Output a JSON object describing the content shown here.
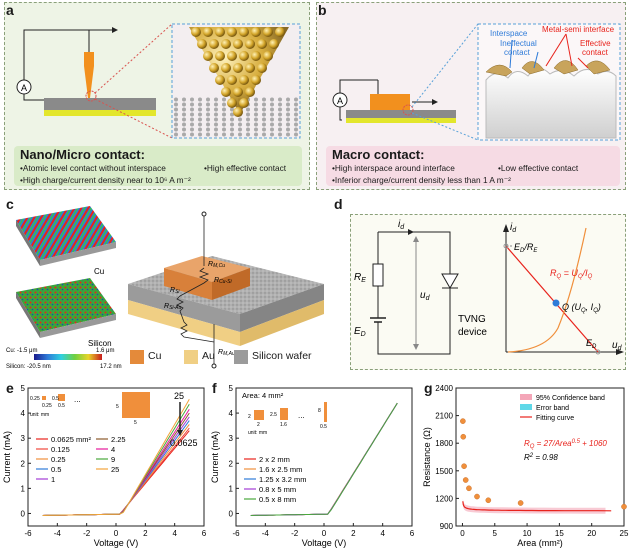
{
  "panel_labels": {
    "a": "a",
    "b": "b",
    "c": "c",
    "d": "d",
    "e": "e",
    "f": "f",
    "g": "g"
  },
  "panel_a": {
    "ammeter": "A",
    "heading": "Nano/Micro contact:",
    "bullets": [
      "•Atomic level contact without interspace",
      "•High effective contact",
      "•High charge/current density near to 10⁶ A m⁻²"
    ]
  },
  "panel_b": {
    "ammeter": "A",
    "labels": {
      "interspace": "Interspace",
      "metal_semi": "Metal-semi interface",
      "ineffectual": "Ineffectual",
      "ineffectual2": "contact",
      "effective": "Effective",
      "effective2": "contact"
    },
    "heading": "Macro contact:",
    "bullets": [
      "•High interspace around interface",
      "•Low effective contact",
      "•Inferior charge/current density less than 1 A m⁻²"
    ]
  },
  "panel_c": {
    "map_labels": {
      "cu": "Cu",
      "silicon": "Silicon"
    },
    "scale": {
      "cu_min": "Cu: -1.5 μm",
      "cu_max": "1.6 μm",
      "si_min": "Silicon: -20.5 nm",
      "si_max": "17.2 nm"
    },
    "resistors": {
      "r_m_cu": "R",
      "r_m_cu_sub": "M,Cu",
      "r_cu_si": "R",
      "r_cu_si_sub": "Cu-Si",
      "r_si": "R",
      "r_si_sub": "Si",
      "r_si_au": "R",
      "r_si_au_sub": "Si-Au",
      "r_au": "R",
      "r_au_sub": "M,Au"
    },
    "legend": [
      {
        "name": "Cu",
        "color": "#e48a3a"
      },
      {
        "name": "Au",
        "color": "#f0cf84"
      },
      {
        "name": "Silicon wafer",
        "color": "#9b9b9b"
      }
    ]
  },
  "panel_d": {
    "circuit": {
      "id": "i",
      "id_sub": "d",
      "re": "R",
      "re_sub": "E",
      "ud": "u",
      "ud_sub": "d",
      "ed": "E",
      "ed_sub": "D",
      "device1": "TVNG",
      "device2": "device"
    },
    "graph": {
      "yaxis": "i",
      "yaxis_sub": "d",
      "xaxis": "u",
      "xaxis_sub": "d",
      "ed_re": "E",
      "ed_re_mid": "D",
      "ed_re_rest": "/R",
      "ed_re_sub": "E",
      "ed": "E",
      "ed_sub": "D",
      "q": "Q (U",
      "q_sub1": "Q",
      "q_mid": ", I",
      "q_sub2": "Q",
      "q_end": ")",
      "rq": "R",
      "rq_sub": "Q",
      "rq_eq": " = U",
      "rq_sub2": "Q",
      "rq_slash": "/I",
      "rq_sub3": "Q"
    }
  },
  "chart_data": [
    {
      "type": "line",
      "panel": "e",
      "xlabel": "Voltage (V)",
      "ylabel": "Current (mA)",
      "xlim": [
        -6,
        6
      ],
      "ylim": [
        -0.5,
        5
      ],
      "xticks": [
        -6,
        -4,
        -2,
        0,
        2,
        4,
        6
      ],
      "yticks": [
        0,
        1,
        2,
        3,
        4,
        5
      ],
      "annotations": {
        "top": "25",
        "bottom": "0.0625",
        "inset_unit": "unit: mm",
        "inset_a": "0.25",
        "inset_b": "0.25",
        "inset_c": "0.5",
        "inset_d": "0.5",
        "inset_e": "5",
        "inset_f": "5"
      },
      "series": [
        {
          "name": "0.0625 mm²",
          "color": "#e8231c",
          "end": 3.3
        },
        {
          "name": "0.125",
          "color": "#f0473c",
          "end": 3.4
        },
        {
          "name": "0.25",
          "color": "#f08f3b",
          "end": 3.55
        },
        {
          "name": "0.5",
          "color": "#2f7bd8",
          "end": 3.7
        },
        {
          "name": "1",
          "color": "#a33bd6",
          "end": 3.85
        },
        {
          "name": "2.25",
          "color": "#8b5a2b",
          "end": 4.0
        },
        {
          "name": "4",
          "color": "#e6199b",
          "end": 4.15
        },
        {
          "name": "9",
          "color": "#4aa83c",
          "end": 4.35
        },
        {
          "name": "25",
          "color": "#f2a33a",
          "end": 4.55
        }
      ]
    },
    {
      "type": "line",
      "panel": "f",
      "title": "Area: 4 mm²",
      "xlabel": "Voltage (V)",
      "ylabel": "Current (mA)",
      "xlim": [
        -6,
        6
      ],
      "ylim": [
        -0.5,
        5
      ],
      "xticks": [
        -6,
        -4,
        -2,
        0,
        2,
        4,
        6
      ],
      "yticks": [
        0,
        1,
        2,
        3,
        4,
        5
      ],
      "annotations": {
        "inset_unit": "unit: mm",
        "i1a": "2",
        "i1b": "2",
        "i2a": "2.5",
        "i2b": "1.6",
        "i3a": "8",
        "i3b": "0.5"
      },
      "series": [
        {
          "name": "2 x 2 mm",
          "color": "#e8231c"
        },
        {
          "name": "1.6 x 2.5 mm",
          "color": "#f08f3b"
        },
        {
          "name": "1.25 x 3.2 mm",
          "color": "#2f7bd8"
        },
        {
          "name": "0.8 x 5 mm",
          "color": "#a33bd6"
        },
        {
          "name": "0.5 x 8 mm",
          "color": "#4aa83c"
        }
      ]
    },
    {
      "type": "scatter",
      "panel": "g",
      "xlabel": "Area (mm²)",
      "ylabel": "Resistance (Ω)",
      "xlim": [
        -1,
        25
      ],
      "ylim": [
        900,
        2400
      ],
      "xticks": [
        0,
        5,
        10,
        15,
        20,
        25
      ],
      "yticks": [
        900,
        1200,
        1500,
        1800,
        2100,
        2400
      ],
      "x": [
        0.0625,
        0.125,
        0.25,
        0.5,
        1,
        2.25,
        4,
        9,
        25
      ],
      "y": [
        2040,
        1870,
        1550,
        1400,
        1310,
        1220,
        1180,
        1150,
        1110
      ],
      "legend": [
        "95% Confidence band",
        "Error band",
        "Fitting curve"
      ],
      "equation": "R_Q = 27/Area^0.5 + 1060",
      "eq": {
        "r": "R",
        "rsub": "Q",
        "mid": " = 27/Area",
        "sup": "0.5",
        "end": " + 1060"
      },
      "r2": {
        "r": "R",
        "sup": "2",
        "end": " = 0.98"
      }
    }
  ]
}
